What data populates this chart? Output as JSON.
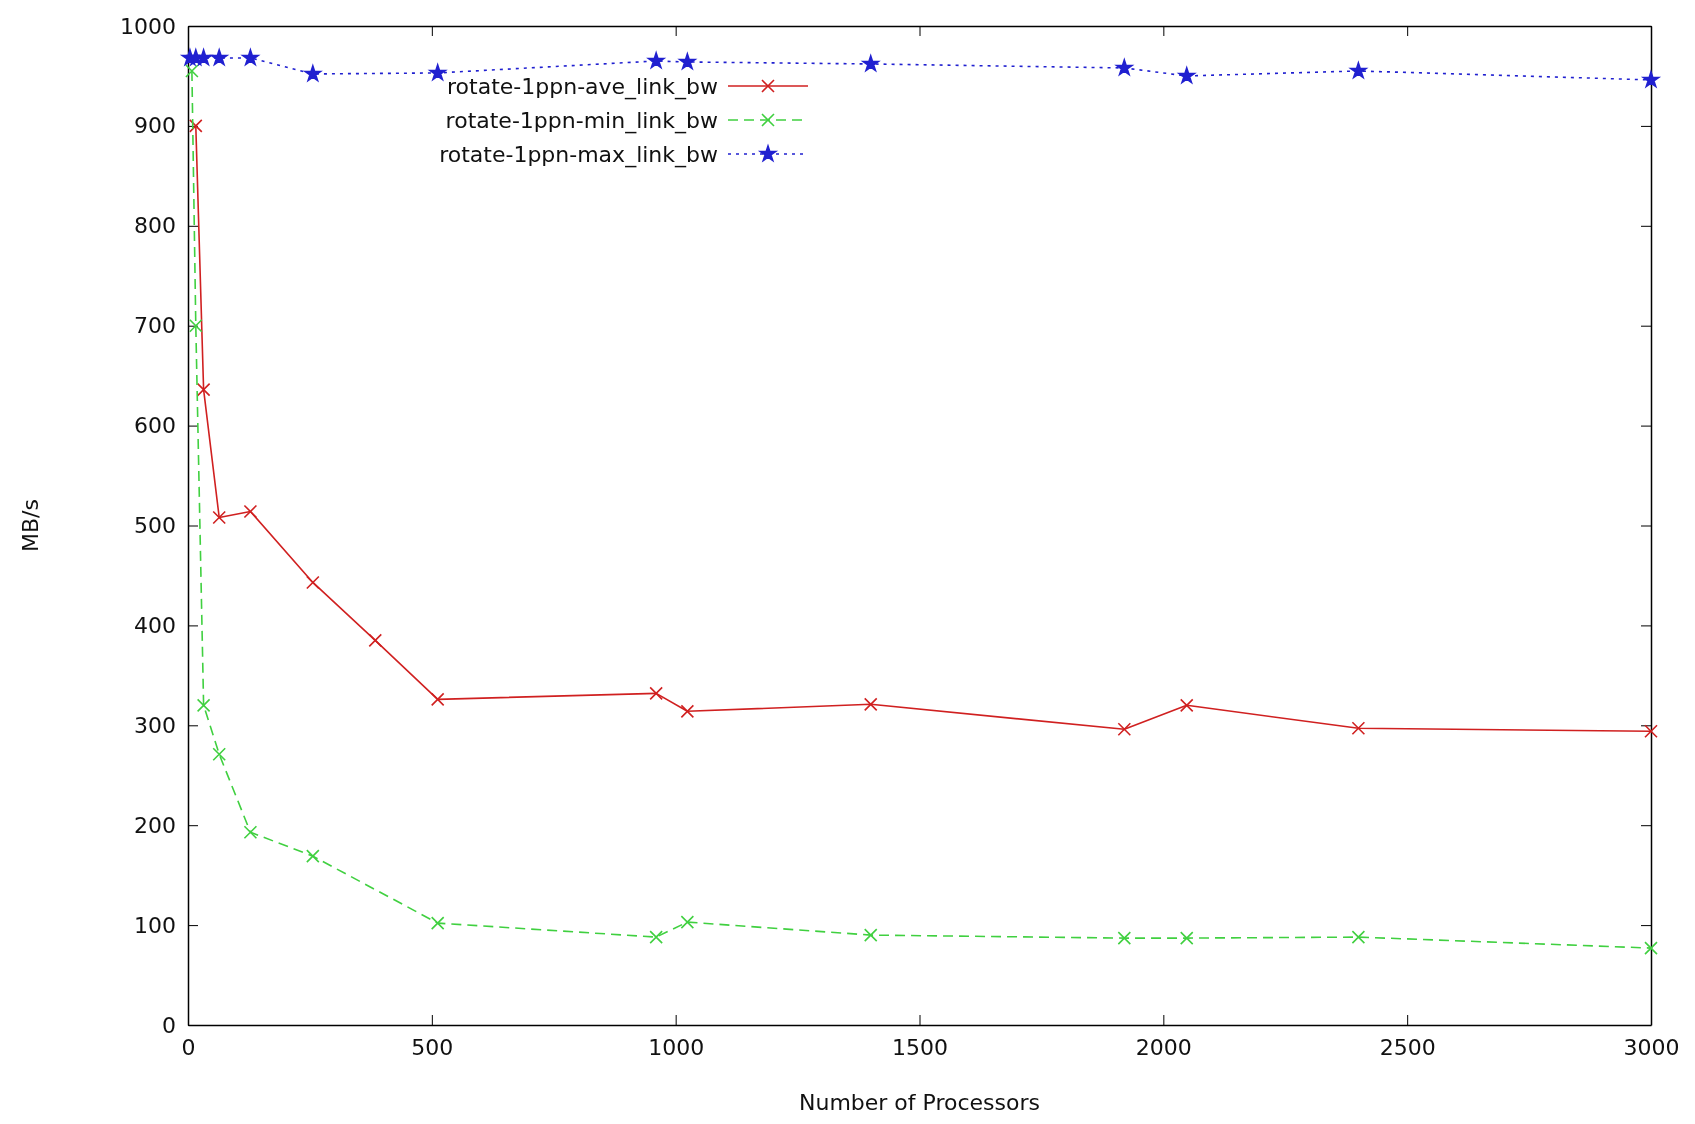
{
  "chart_data": {
    "type": "line",
    "xlabel": "Number of Processors",
    "ylabel": "MB/s",
    "xlim": [
      0,
      3000
    ],
    "ylim": [
      0,
      1000
    ],
    "xticks": [
      0,
      500,
      1000,
      1500,
      2000,
      2500,
      3000
    ],
    "yticks": [
      0,
      100,
      200,
      300,
      400,
      500,
      600,
      700,
      800,
      900,
      1000
    ],
    "grid": false,
    "legend": "top",
    "series": [
      {
        "name": "rotate-1ppn-ave_link_bw",
        "color": "#d02020",
        "marker": "cross",
        "line_style": "solid",
        "x": [
          16,
          32,
          64,
          128,
          256,
          384,
          512,
          960,
          1024,
          1400,
          1920,
          2048,
          2400,
          3000
        ],
        "values": [
          900,
          636,
          508,
          514,
          443,
          385,
          326,
          332,
          314,
          321,
          296,
          320,
          297,
          294
        ]
      },
      {
        "name": "rotate-1ppn-min_link_bw",
        "color": "#40d040",
        "marker": "cross",
        "line_style": "dashed",
        "x": [
          8,
          16,
          32,
          64,
          128,
          256,
          512,
          960,
          1024,
          1400,
          1920,
          2048,
          2400,
          3000
        ],
        "values": [
          955,
          700,
          320,
          271,
          193,
          169,
          102,
          88,
          103,
          90,
          87,
          87,
          88,
          77
        ]
      },
      {
        "name": "rotate-1ppn-max_link_bw",
        "color": "#2020d0",
        "marker": "star",
        "line_style": "dotted",
        "x": [
          4,
          16,
          32,
          64,
          128,
          256,
          512,
          960,
          1024,
          1400,
          1920,
          2048,
          2400,
          3000
        ],
        "values": [
          968,
          968,
          968,
          968,
          968,
          952,
          953,
          965,
          964,
          962,
          958,
          950,
          955,
          946
        ]
      }
    ]
  }
}
